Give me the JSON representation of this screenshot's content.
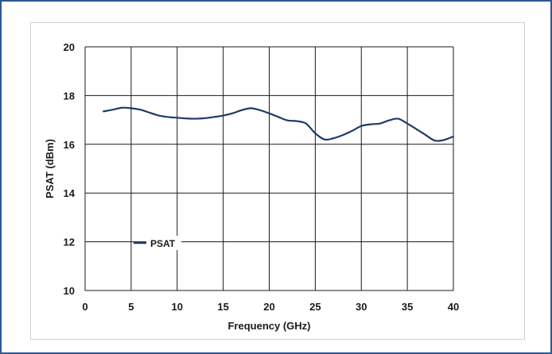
{
  "chart_data": {
    "type": "line",
    "title": "",
    "xlabel": "Frequency (GHz)",
    "ylabel": "PSAT (dBm)",
    "xlim": [
      0,
      40
    ],
    "ylim": [
      10,
      20
    ],
    "xticks": [
      0,
      5,
      10,
      15,
      20,
      25,
      30,
      35,
      40
    ],
    "yticks": [
      10,
      12,
      14,
      16,
      18,
      20
    ],
    "grid": true,
    "legend_position": "lower-left",
    "line_color": "#1f3a6b",
    "series": [
      {
        "name": "PSAT",
        "x": [
          2,
          3,
          4,
          5,
          6,
          7,
          8,
          9,
          10,
          11,
          12,
          13,
          14,
          15,
          16,
          17,
          18,
          19,
          20,
          21,
          22,
          23,
          24,
          25,
          26,
          27,
          28,
          29,
          30,
          31,
          32,
          33,
          34,
          35,
          36,
          37,
          38,
          39,
          40
        ],
        "y": [
          17.35,
          17.42,
          17.5,
          17.48,
          17.42,
          17.3,
          17.18,
          17.12,
          17.09,
          17.06,
          17.05,
          17.07,
          17.12,
          17.18,
          17.27,
          17.4,
          17.48,
          17.4,
          17.27,
          17.12,
          16.98,
          16.95,
          16.85,
          16.45,
          16.2,
          16.25,
          16.38,
          16.55,
          16.75,
          16.82,
          16.85,
          16.98,
          17.05,
          16.85,
          16.62,
          16.38,
          16.15,
          16.18,
          16.32
        ]
      }
    ]
  }
}
